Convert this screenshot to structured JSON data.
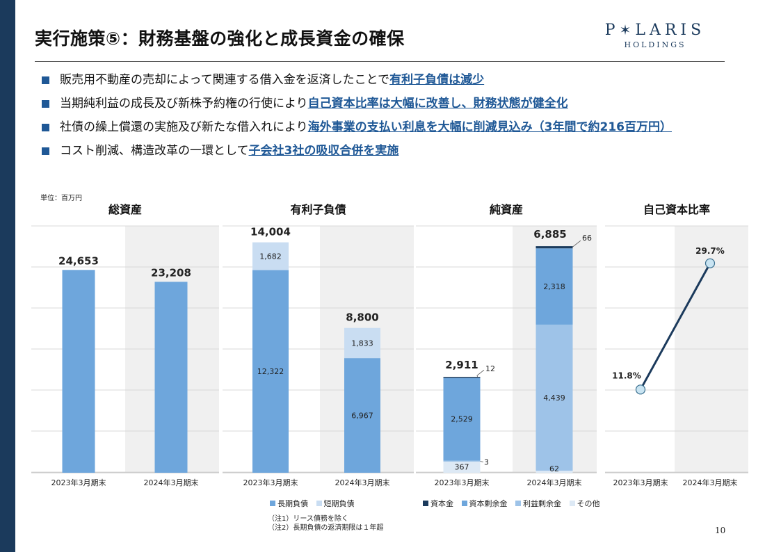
{
  "title": "実行施策⑤：財務基盤の強化と成長資金の確保",
  "logo": {
    "brand_pre": "P",
    "brand_star": "✶",
    "brand_post": "LARIS",
    "sub": "HOLDINGS"
  },
  "bullets": [
    {
      "text": "販売用不動産の売却によって関連する借入金を返済したことで",
      "highlight": "有利子負債は減少"
    },
    {
      "text": "当期純利益の成長及び新株予約権の行使により",
      "highlight": "自己資本比率は大幅に改善し、財務状態が健全化"
    },
    {
      "text": "社債の繰上償還の実施及び新たな借入れにより",
      "highlight": "海外事業の支払い利息を大幅に削減見込み（3年間で約216百万円）"
    },
    {
      "text": "コスト削減、構造改革の一環として",
      "highlight": "子会社3社の吸収合併を実施"
    }
  ],
  "unit_label": "単位：百万円",
  "legend_debt": [
    "長期負債",
    "短期負債"
  ],
  "legend_equity": [
    "資本金",
    "資本剰余金",
    "利益剰余金",
    "その他"
  ],
  "notes": [
    "（注1）リース債務を除く",
    "（注2）長期負債の返済期限は１年超"
  ],
  "page_number": "10",
  "colors": {
    "accent": "#1f5896",
    "bar_primary": "#6ea6dc",
    "bar_light": "#c9ddf2",
    "bar_mid": "#9ec3e8",
    "navy": "#1b3a5c",
    "shade": "#f0f0f0"
  },
  "chart_data": [
    {
      "type": "bar",
      "title": "総資産",
      "categories": [
        "2023年3月期末",
        "2024年3月期末"
      ],
      "values": [
        24653,
        23208
      ],
      "labels": [
        "24,653",
        "23,208"
      ],
      "ylim": [
        0,
        30000
      ]
    },
    {
      "type": "bar",
      "stacked": true,
      "title": "有利子負債",
      "categories": [
        "2023年3月期末",
        "2024年3月期末"
      ],
      "series": [
        {
          "name": "長期負債",
          "values": [
            12322,
            6967
          ],
          "labels": [
            "12,322",
            "6,967"
          ]
        },
        {
          "name": "短期負債",
          "values": [
            1682,
            1833
          ],
          "labels": [
            "1,682",
            "1,833"
          ]
        }
      ],
      "totals": [
        "14,004",
        "8,800"
      ],
      "ylim": [
        0,
        15000
      ]
    },
    {
      "type": "bar",
      "stacked": true,
      "title": "純資産",
      "categories": [
        "2023年3月期末",
        "2024年3月期末"
      ],
      "series": [
        {
          "name": "その他",
          "values": [
            367,
            62
          ],
          "labels": [
            "367",
            "62"
          ]
        },
        {
          "name": "利益剰余金",
          "values": [
            3,
            4439
          ],
          "labels": [
            "3",
            "4,439"
          ]
        },
        {
          "name": "資本剰余金",
          "values": [
            2529,
            2318
          ],
          "labels": [
            "2,529",
            "2,318"
          ]
        },
        {
          "name": "資本金",
          "values": [
            12,
            66
          ],
          "labels": [
            "12",
            "66"
          ]
        }
      ],
      "totals": [
        "2,911",
        "6,885"
      ],
      "ylim": [
        0,
        7500
      ]
    },
    {
      "type": "line",
      "title": "自己資本比率",
      "categories": [
        "2023年3月期末",
        "2024年3月期末"
      ],
      "values": [
        11.8,
        29.7
      ],
      "labels": [
        "11.8%",
        "29.7%"
      ],
      "ylim": [
        0,
        35
      ]
    }
  ]
}
